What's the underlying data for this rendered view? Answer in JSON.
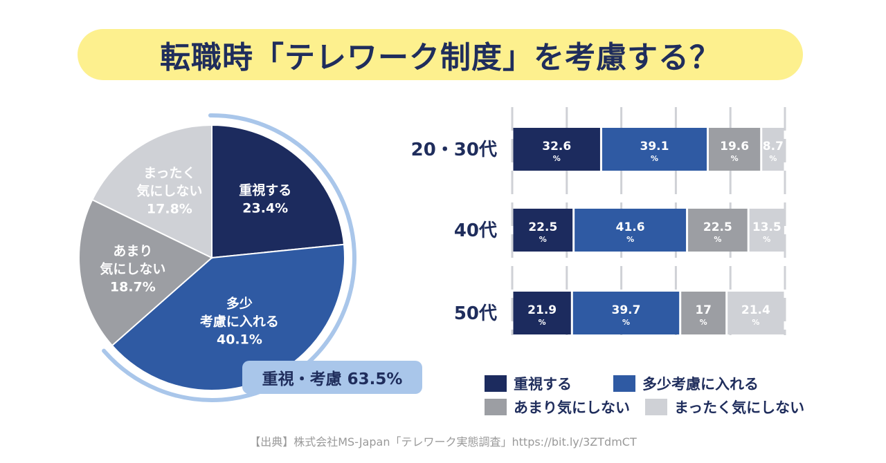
{
  "title": "転職時「テレワーク制度」を考慮する？",
  "highlight": "重視・考慮 63.5%",
  "source": "【出典】株式会社MS-Japan「テレワーク実態調査」https://bit.ly/3ZTdmCT",
  "colors": {
    "c1": "#1c2b5e",
    "c2": "#2f5aa3",
    "c3": "#9c9ea3",
    "c4": "#cfd1d6",
    "accent_ring": "#a9c6ea",
    "title_bg": "#fdf08e"
  },
  "legend": [
    {
      "label": "重視する",
      "color": "#1c2b5e"
    },
    {
      "label": "多少考慮に入れる",
      "color": "#2f5aa3"
    },
    {
      "label": "あまり気にしない",
      "color": "#9c9ea3"
    },
    {
      "label": "まったく気にしない",
      "color": "#cfd1d6"
    }
  ],
  "chart_data": [
    {
      "type": "pie",
      "title": "",
      "slices": [
        {
          "label_lines": [
            "重視する"
          ],
          "value": 23.4,
          "value_text": "23.4%",
          "color": "#1c2b5e"
        },
        {
          "label_lines": [
            "多少",
            "考慮に入れる"
          ],
          "value": 40.1,
          "value_text": "40.1%",
          "color": "#2f5aa3"
        },
        {
          "label_lines": [
            "あまり",
            "気にしない"
          ],
          "value": 18.7,
          "value_text": "18.7%",
          "color": "#9c9ea3"
        },
        {
          "label_lines": [
            "まったく",
            "気にしない"
          ],
          "value": 17.8,
          "value_text": "17.8%",
          "color": "#cfd1d6"
        }
      ]
    },
    {
      "type": "bar",
      "orientation": "horizontal-stacked-100",
      "categories": [
        "20・30代",
        "40代",
        "50代"
      ],
      "series": [
        {
          "name": "重視する",
          "values": [
            32.6,
            22.5,
            21.9
          ],
          "labels": [
            "32.6",
            "22.5",
            "21.9"
          ],
          "color": "#1c2b5e"
        },
        {
          "name": "多少考慮に入れる",
          "values": [
            39.1,
            41.6,
            39.7
          ],
          "labels": [
            "39.1",
            "41.6",
            "39.7"
          ],
          "color": "#2f5aa3"
        },
        {
          "name": "あまり気にしない",
          "values": [
            19.6,
            22.5,
            17
          ],
          "labels": [
            "19.6",
            "22.5",
            "17"
          ],
          "color": "#9c9ea3"
        },
        {
          "name": "まったく気にしない",
          "values": [
            8.7,
            13.5,
            21.4
          ],
          "labels": [
            "8.7",
            "13.5",
            "21.4"
          ],
          "color": "#cfd1d6"
        }
      ],
      "unit": "%",
      "xlim": [
        0,
        100
      ],
      "gridlines": [
        0,
        20,
        40,
        60,
        80,
        100
      ]
    }
  ]
}
